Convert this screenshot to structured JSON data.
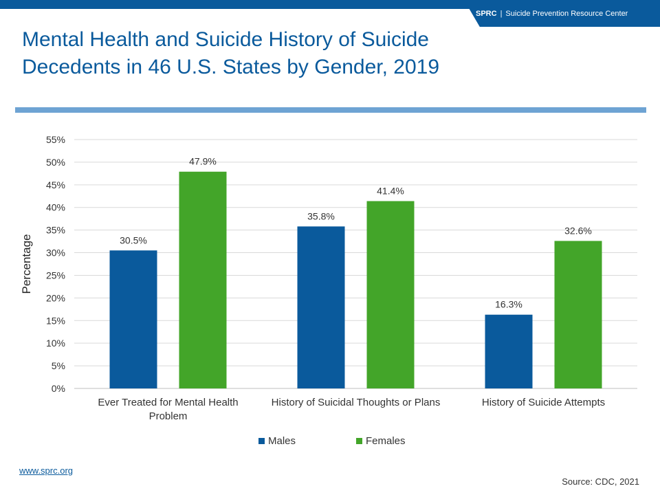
{
  "header": {
    "org_abbr": "SPRC",
    "separator": "|",
    "org_name": "Suicide Prevention Resource Center"
  },
  "title_lines": [
    "Mental Health and Suicide History of Suicide",
    "Decedents in 46 U.S. States by Gender, 2019"
  ],
  "colors": {
    "brand": "#0a5a9c",
    "accent_bar": "#6ea3d3",
    "males": "#0a5a9c",
    "females": "#43a529",
    "grid": "#d9d9d9"
  },
  "chart_data": {
    "type": "bar",
    "title": "",
    "xlabel": "",
    "ylabel": "Percentage",
    "ylim": [
      0,
      55
    ],
    "yticks": [
      0,
      5,
      10,
      15,
      20,
      25,
      30,
      35,
      40,
      45,
      50,
      55
    ],
    "ytick_labels": [
      "0%",
      "5%",
      "10%",
      "15%",
      "20%",
      "25%",
      "30%",
      "35%",
      "40%",
      "45%",
      "50%",
      "55%"
    ],
    "grid": true,
    "legend_position": "bottom",
    "categories": [
      "Ever Treated for Mental Health Problem",
      "History of Suicidal Thoughts or Plans",
      "History of Suicide Attempts"
    ],
    "category_label_lines": [
      [
        "Ever Treated for Mental Health",
        "Problem"
      ],
      [
        "History of Suicidal Thoughts or Plans"
      ],
      [
        "History of Suicide Attempts"
      ]
    ],
    "series": [
      {
        "name": "Males",
        "values": [
          30.5,
          35.8,
          16.3
        ],
        "labels": [
          "30.5%",
          "35.8%",
          "16.3%"
        ]
      },
      {
        "name": "Females",
        "values": [
          47.9,
          41.4,
          32.6
        ],
        "labels": [
          "47.9%",
          "41.4%",
          "32.6%"
        ]
      }
    ]
  },
  "footer": {
    "link": "www.sprc.org",
    "source": "Source: CDC, 2021"
  }
}
